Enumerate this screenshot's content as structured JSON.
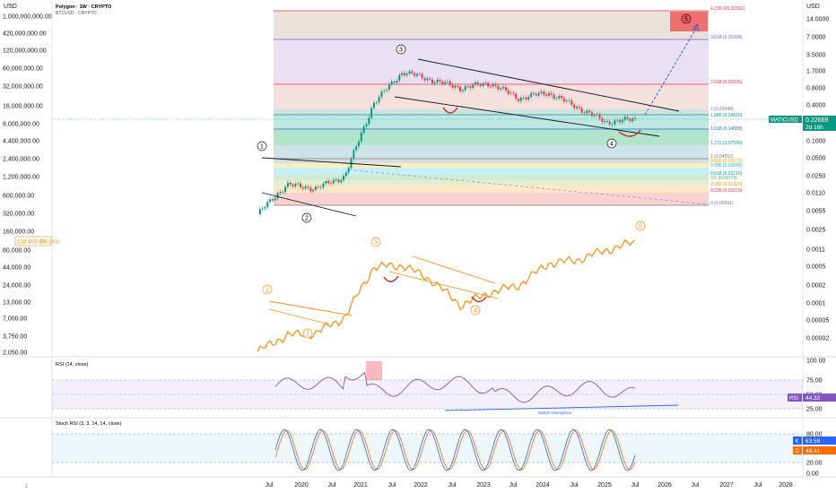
{
  "header": {
    "left_axis_currency": "USD",
    "right_axis_currency": "USD",
    "symbol_line": "Polygon · 1W · CRYPTO",
    "overlay_line": "BTCUSD · CRYPTO"
  },
  "left_axis_ticks": [
    "1,000,000,000.00",
    "420,000,000.00",
    "120,000,000.00",
    "60,000,000.00",
    "32,000,000.00",
    "16,000,000.00",
    "8,000,000.00",
    "4,400,000.00",
    "2,400,000.00",
    "1,200,000.00",
    "600,000.00",
    "320,000.00",
    "160,000.00",
    "80,000.00",
    "44,000.00",
    "24,000.00",
    "13,000.00",
    "7,000.00",
    "3,750.00",
    "2,050.00"
  ],
  "btc_price_badge": "118,406.26",
  "btc_series_badge": "BTCUSD",
  "right_axis_ticks": [
    "14.0000",
    "7.0000",
    "3.5000",
    "1.7000",
    "0.8000",
    "0.4000",
    "0.2000",
    "0.1000",
    "0.0500",
    "0.0250",
    "0.0110",
    "0.0055",
    "0.0025",
    "0.0011",
    "0.0005",
    "0.0002",
    "0.0001",
    "0.00005",
    "0.00002"
  ],
  "matic_badge": {
    "symbol": "MATICUSD",
    "price": "0.22669",
    "countdown": "2d 16h"
  },
  "time_axis": [
    "Jul",
    "2020",
    "Jul",
    "2021",
    "Jul",
    "2022",
    "Jul",
    "2023",
    "Jul",
    "2024",
    "Jul",
    "2025",
    "Jul",
    "2026",
    "Jul",
    "2027",
    "Jul",
    "2028"
  ],
  "fib_levels": [
    {
      "label": "4.236 (20.21592)",
      "color": "#f23645"
    },
    {
      "label": "3.618 (6.31099)",
      "color": "#7e57c2"
    },
    {
      "label": "2.618 (0.96935)",
      "color": "#f23645"
    },
    {
      "label": "2 (0.29948)",
      "color": "#787b86"
    },
    {
      "label": "1.886 (0.24160)",
      "color": "#089981"
    },
    {
      "label": "1.618 (0.14583)",
      "color": "#2962ff"
    },
    {
      "label": "1.272 (0.07599)",
      "color": "#089981"
    },
    {
      "label": "1 (0.04552)",
      "color": "#787b86"
    },
    {
      "label": "0.886 (0.03672)",
      "color": "#f7a600"
    },
    {
      "label": "0.786 (0.03043)",
      "color": "#00bcd4"
    },
    {
      "label": "0.618 (0.02216)",
      "color": "#089981"
    },
    {
      "label": "0.5 (0.01774)",
      "color": "#4caf50"
    },
    {
      "label": "0.382 (0.01420)",
      "color": "#ff9800"
    },
    {
      "label": "0.236 (0.01079)",
      "color": "#f23645"
    },
    {
      "label": "0 (0.00691)",
      "color": "#787b86"
    }
  ],
  "wave_labels": {
    "matic": [
      "1",
      "2",
      "3",
      "4",
      "5"
    ],
    "btc": [
      "1",
      "2",
      "3",
      "4",
      "5"
    ]
  },
  "rsi": {
    "title": "RSI (14, close)",
    "value": "44.32",
    "badge_label": "RSI",
    "axis": [
      "100.00",
      "75.00",
      "50.00",
      "25.00"
    ],
    "annotation": "Bullish Divergence"
  },
  "stoch_rsi": {
    "title": "Stoch RSI (3, 3, 14, 14, close)",
    "k": {
      "label": "K",
      "value": "63.58"
    },
    "d": {
      "label": "D",
      "value": "48.41"
    },
    "axis": [
      "80.00",
      "20.00",
      "0.00"
    ]
  },
  "chart_data": {
    "type": "line",
    "x": [
      "2019-04",
      "2019-10",
      "2020-04",
      "2020-10",
      "2021-04",
      "2021-10",
      "2022-04",
      "2022-10",
      "2023-04",
      "2023-10",
      "2024-04",
      "2024-10",
      "2025-04",
      "2025-07"
    ],
    "series": [
      {
        "name": "MATICUSD",
        "values": [
          0.004,
          0.014,
          0.012,
          0.02,
          0.45,
          1.7,
          1.2,
          0.85,
          1.05,
          0.55,
          0.7,
          0.38,
          0.2,
          0.2267
        ]
      },
      {
        "name": "BTCUSD",
        "values": [
          5200,
          8300,
          8800,
          13800,
          58000,
          61000,
          40000,
          19500,
          28000,
          34500,
          64000,
          71000,
          94000,
          118406.26
        ]
      }
    ],
    "colors": {
      "matic_bull": "#089981",
      "matic_bear": "#f23645",
      "btc": "#f7931a",
      "projection": "#1e53e5",
      "rsi": "#7e57c2",
      "stoch_k": "#2962ff",
      "stoch_d": "#ff6d00"
    }
  }
}
